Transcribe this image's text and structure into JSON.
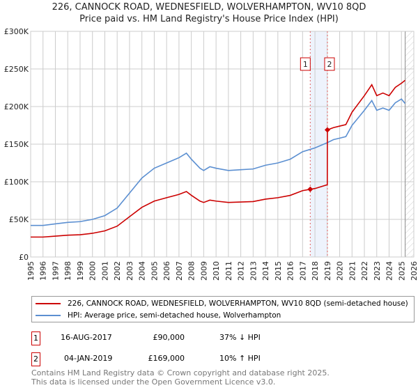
{
  "title": "226, CANNOCK ROAD, WEDNESFIELD, WOLVERHAMPTON, WV10 8QD",
  "subtitle": "Price paid vs. HM Land Registry's House Price Index (HPI)",
  "colors": {
    "red": "#cc0000",
    "blue": "#5b8fd1"
  },
  "chart_data": {
    "type": "line",
    "xlim": [
      1995,
      2026
    ],
    "ylim": [
      0,
      300000
    ],
    "yticks": [
      {
        "v": 0,
        "label": "£0"
      },
      {
        "v": 50000,
        "label": "£50K"
      },
      {
        "v": 100000,
        "label": "£100K"
      },
      {
        "v": 150000,
        "label": "£150K"
      },
      {
        "v": 200000,
        "label": "£200K"
      },
      {
        "v": 250000,
        "label": "£250K"
      },
      {
        "v": 300000,
        "label": "£300K"
      }
    ],
    "xticks": [
      "1995",
      "1996",
      "1997",
      "1998",
      "1999",
      "2000",
      "2001",
      "2002",
      "2003",
      "2004",
      "2005",
      "2006",
      "2007",
      "2008",
      "2009",
      "2010",
      "2011",
      "2012",
      "2013",
      "2014",
      "2015",
      "2016",
      "2017",
      "2018",
      "2019",
      "2020",
      "2021",
      "2022",
      "2023",
      "2024",
      "2025",
      "2026"
    ],
    "series": [
      {
        "name": "HPI: Average price, semi-detached house, Wolverhampton",
        "color": "#5b8fd1",
        "x": [
          1995,
          1996,
          1997,
          1998,
          1999,
          2000,
          2001,
          2002,
          2003,
          2004,
          2005,
          2006,
          2007,
          2007.6,
          2008,
          2008.7,
          2009,
          2009.5,
          2010,
          2011,
          2012,
          2013,
          2014,
          2015,
          2016,
          2017,
          2017.6,
          2018,
          2019,
          2019.5,
          2020,
          2020.5,
          2021,
          2022,
          2022.6,
          2023,
          2023.5,
          2024,
          2024.5,
          2025,
          2025.3
        ],
        "y": [
          42000,
          42000,
          44000,
          46000,
          47000,
          50000,
          55000,
          65000,
          85000,
          105000,
          118000,
          125000,
          132000,
          138000,
          130000,
          118000,
          115000,
          120000,
          118000,
          115000,
          116000,
          117000,
          122000,
          125000,
          130000,
          140000,
          143000,
          145000,
          152000,
          156000,
          158000,
          160000,
          175000,
          195000,
          208000,
          195000,
          198000,
          195000,
          205000,
          210000,
          204000
        ]
      },
      {
        "name": "226, CANNOCK ROAD, WEDNESFIELD, WOLVERHAMPTON, WV10 8QD (semi-detached house)",
        "color": "#cc0000",
        "x": [
          1995,
          1996,
          1997,
          1998,
          1999,
          2000,
          2001,
          2002,
          2003,
          2004,
          2005,
          2006,
          2007,
          2007.6,
          2008,
          2008.7,
          2009,
          2009.5,
          2010,
          2011,
          2012,
          2013,
          2014,
          2015,
          2016,
          2017,
          2017.62,
          2018,
          2019.0,
          2019.01,
          2019.5,
          2020,
          2020.5,
          2021,
          2022,
          2022.6,
          2023,
          2023.5,
          2024,
          2024.5,
          2025,
          2025.3
        ],
        "y": [
          26500,
          26500,
          27700,
          29000,
          29600,
          31500,
          34700,
          41000,
          53600,
          66000,
          74300,
          78800,
          83200,
          87000,
          82000,
          74300,
          72500,
          75600,
          74300,
          72500,
          73100,
          73700,
          76900,
          78800,
          81900,
          88200,
          90000,
          91000,
          96000,
          169000,
          172000,
          174000,
          176000,
          192500,
          214500,
          229000,
          214500,
          218000,
          214500,
          225500,
          231000,
          235000
        ]
      }
    ],
    "sales": [
      {
        "n": "1",
        "x": 2017.62,
        "y": 90000
      },
      {
        "n": "2",
        "x": 2019.01,
        "y": 169000
      }
    ],
    "projection_from": 2025.3
  },
  "legend": [
    {
      "label": "226, CANNOCK ROAD, WEDNESFIELD, WOLVERHAMPTON, WV10 8QD (semi-detached house)"
    },
    {
      "label": "HPI: Average price, semi-detached house, Wolverhampton"
    }
  ],
  "transactions": [
    {
      "n": "1",
      "date": "16-AUG-2017",
      "price": "£90,000",
      "hpi": "37% ↓ HPI"
    },
    {
      "n": "2",
      "date": "04-JAN-2019",
      "price": "£169,000",
      "hpi": "10% ↑ HPI"
    }
  ],
  "footer": [
    "Contains HM Land Registry data © Crown copyright and database right 2025.",
    "This data is licensed under the Open Government Licence v3.0."
  ]
}
